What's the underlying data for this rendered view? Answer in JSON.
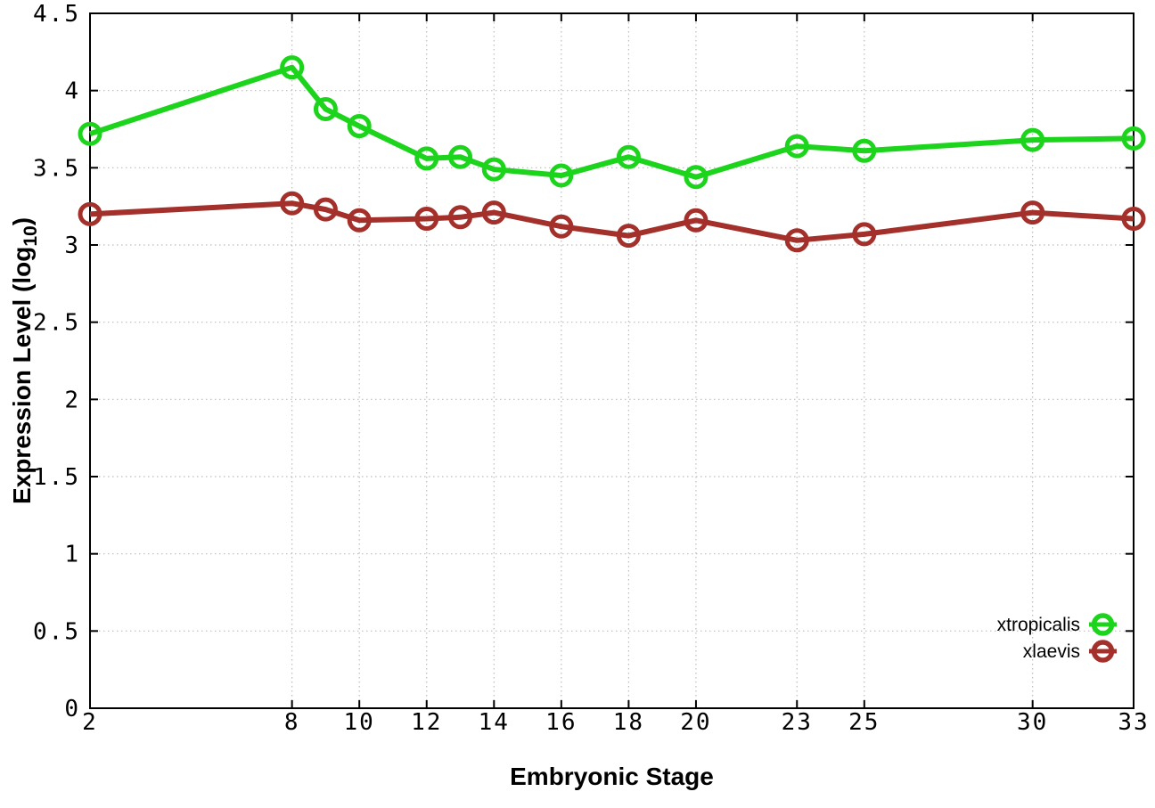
{
  "chart_data": {
    "type": "line",
    "title": "",
    "xlabel": "Embryonic Stage",
    "ylabel": {
      "pre": "Expression Level (log",
      "sub": "10",
      "post": ")"
    },
    "xlim": [
      2,
      33
    ],
    "ylim": [
      0,
      4.5
    ],
    "xticks": [
      2,
      8,
      10,
      12,
      14,
      16,
      18,
      20,
      23,
      25,
      30,
      33
    ],
    "xtick_labels": [
      "2",
      "8",
      "10",
      "12",
      "14",
      "16",
      "18",
      "20",
      "23",
      "25",
      "30",
      "33"
    ],
    "yticks": [
      0,
      0.5,
      1,
      1.5,
      2,
      2.5,
      3,
      3.5,
      4,
      4.5
    ],
    "ytick_labels": [
      "0",
      "0.5",
      "1",
      "1.5",
      "2",
      "2.5",
      "3",
      "3.5",
      "4",
      "4.5"
    ],
    "grid": true,
    "legend_position": "bottom-right",
    "x": [
      2,
      8,
      9,
      10,
      12,
      13,
      14,
      16,
      18,
      20,
      23,
      25,
      30,
      33
    ],
    "series": [
      {
        "name": "xtropicalis",
        "color": "#1cd41c",
        "marker": "open-circle",
        "values": [
          3.72,
          4.15,
          3.88,
          3.77,
          3.56,
          3.57,
          3.49,
          3.45,
          3.57,
          3.44,
          3.64,
          3.61,
          3.68,
          3.69
        ]
      },
      {
        "name": "xlaevis",
        "color": "#a3302a",
        "marker": "open-circle",
        "values": [
          3.2,
          3.27,
          3.23,
          3.16,
          3.17,
          3.18,
          3.21,
          3.12,
          3.06,
          3.16,
          3.03,
          3.07,
          3.21,
          3.17
        ]
      }
    ],
    "colors": {
      "grid": "#bdbdbd",
      "axis": "#000000",
      "text": "#000000",
      "background": "#ffffff"
    }
  }
}
